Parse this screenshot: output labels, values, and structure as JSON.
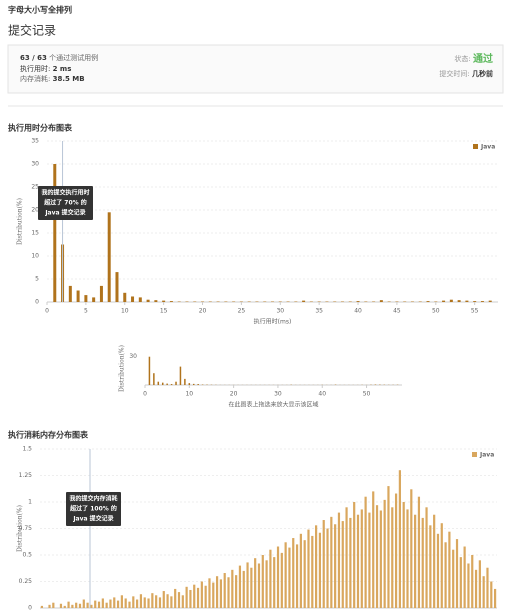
{
  "header": {
    "problem": "字母大小写全排列",
    "title": "提交记录"
  },
  "summary": {
    "passed": "63 / 63",
    "passed_label": "个通过测试用例",
    "runtime_label": "执行用时:",
    "runtime": "2 ms",
    "memory_label": "内存消耗:",
    "memory": "38.5 MB",
    "status_label": "状态:",
    "status": "通过",
    "time_label": "提交时间:",
    "time": "几秒前"
  },
  "chart_data": [
    {
      "type": "bar",
      "title": "执行用时分布图表",
      "x_label": "执行用时(ms)",
      "y_label": "Distribution(%)",
      "marker_x": 2,
      "annotation": [
        "我的提交执行用时",
        "超过了 70% 的",
        "Java 提交记录"
      ],
      "xlim": [
        0,
        58
      ],
      "xticks": [
        0,
        5,
        10,
        15,
        20,
        25,
        30,
        35,
        40,
        45,
        50,
        55
      ],
      "ylim": [
        0,
        35
      ],
      "yticks": [
        0,
        5,
        10,
        15,
        20,
        25,
        30,
        35
      ],
      "grid": true,
      "legend": "top-right",
      "x": [
        1,
        2,
        3,
        4,
        5,
        6,
        7,
        8,
        9,
        10,
        11,
        12,
        13,
        14,
        15,
        16,
        17,
        18,
        19,
        20,
        21,
        22,
        23,
        24,
        25,
        26,
        27,
        28,
        29,
        30,
        31,
        32,
        33,
        34,
        35,
        36,
        37,
        38,
        39,
        40,
        41,
        42,
        43,
        44,
        45,
        46,
        47,
        48,
        49,
        50,
        51,
        52,
        53,
        54,
        55,
        56,
        57
      ],
      "series": [
        {
          "name": "Java",
          "color": "#b0731c",
          "values": [
            30,
            12.5,
            3.5,
            2.5,
            1.5,
            1,
            3.5,
            19.5,
            6.5,
            2,
            1.2,
            1,
            0.5,
            0.4,
            0.3,
            0.2,
            0.1,
            0.1,
            0.1,
            0.1,
            0.1,
            0.1,
            0.1,
            0.1,
            0.1,
            0.1,
            0.1,
            0.1,
            0.1,
            0.1,
            0.1,
            0.1,
            0.3,
            0.1,
            0.1,
            0.1,
            0.1,
            0.1,
            0.1,
            0.2,
            0.1,
            0.1,
            0.4,
            0.1,
            0.1,
            0.1,
            0.1,
            0.1,
            0.2,
            0.1,
            0.3,
            0.5,
            0.4,
            0.3,
            0.2,
            0.2,
            0.3
          ]
        }
      ]
    },
    {
      "type": "bar",
      "x_label": "在此图表上拖选来放大显示该区域",
      "y_label": "Distribution(%)",
      "xlim": [
        0,
        58
      ],
      "xticks": [
        0,
        10,
        20,
        30,
        40,
        50
      ],
      "ylim": [
        0,
        35
      ],
      "yticks": [
        30
      ],
      "grid": false,
      "x": [
        1,
        2,
        3,
        4,
        5,
        6,
        7,
        8,
        9,
        10,
        11,
        12,
        13,
        14,
        15,
        16,
        17,
        18,
        19,
        20,
        21,
        22,
        23,
        24,
        25,
        26,
        27,
        28,
        29,
        30,
        31,
        32,
        33,
        34,
        35,
        36,
        37,
        38,
        39,
        40,
        41,
        42,
        43,
        44,
        45,
        46,
        47,
        48,
        49,
        50,
        51,
        52,
        53,
        54,
        55,
        56,
        57
      ],
      "series": [
        {
          "name": "Java",
          "color": "#b0731c",
          "values": [
            30,
            12.5,
            3.5,
            2.5,
            1.5,
            1,
            3.5,
            19.5,
            6.5,
            2,
            1.2,
            1,
            0.5,
            0.4,
            0.3,
            0.2,
            0.1,
            0.1,
            0.1,
            0.1,
            0.1,
            0.1,
            0.1,
            0.1,
            0.1,
            0.1,
            0.1,
            0.1,
            0.1,
            0.1,
            0.1,
            0.1,
            0.3,
            0.1,
            0.1,
            0.1,
            0.1,
            0.1,
            0.1,
            0.2,
            0.1,
            0.1,
            0.4,
            0.1,
            0.1,
            0.1,
            0.1,
            0.1,
            0.2,
            0.1,
            0.3,
            0.5,
            0.4,
            0.3,
            0.2,
            0.2,
            0.3
          ]
        }
      ]
    },
    {
      "type": "bar",
      "title": "执行消耗内存分布图表",
      "y_label": "Distribution(%)",
      "annotation": [
        "我的提交内存消耗",
        "超过了 100% 的",
        "Java 提交记录"
      ],
      "ylim": [
        0,
        1.5
      ],
      "yticks": [
        0,
        0.25,
        0.5,
        0.75,
        1,
        1.25,
        1.5
      ],
      "grid": true,
      "legend": "top-right",
      "series": [
        {
          "name": "Java",
          "color": "#d9a75e",
          "values": [
            0.02,
            0,
            0.03,
            0.05,
            0,
            0.04,
            0.02,
            0.06,
            0.03,
            0.05,
            0.04,
            0.08,
            0.05,
            0.03,
            0.07,
            0.06,
            0.09,
            0.05,
            0.08,
            0.1,
            0.07,
            0.12,
            0.09,
            0.06,
            0.11,
            0.08,
            0.13,
            0.1,
            0.09,
            0.14,
            0.12,
            0.1,
            0.16,
            0.13,
            0.11,
            0.18,
            0.15,
            0.12,
            0.2,
            0.17,
            0.22,
            0.19,
            0.25,
            0.21,
            0.28,
            0.24,
            0.3,
            0.27,
            0.33,
            0.29,
            0.36,
            0.31,
            0.4,
            0.35,
            0.43,
            0.38,
            0.47,
            0.42,
            0.5,
            0.45,
            0.55,
            0.48,
            0.58,
            0.52,
            0.62,
            0.57,
            0.66,
            0.6,
            0.7,
            0.64,
            0.74,
            0.68,
            0.78,
            0.71,
            0.83,
            0.75,
            0.86,
            0.79,
            0.9,
            0.82,
            0.95,
            0.85,
            1.0,
            0.88,
            0.93,
            1.05,
            0.9,
            1.1,
            0.97,
            0.92,
            1.02,
            1.15,
            0.95,
            1.08,
            1.3,
            1.0,
            0.93,
            1.12,
            0.88,
            1.05,
            0.85,
            0.95,
            0.78,
            0.88,
            0.7,
            0.8,
            0.62,
            0.72,
            0.55,
            0.65,
            0.48,
            0.58,
            0.42,
            0.5,
            0.36,
            0.45,
            0.3,
            0.38,
            0.25,
            0.18
          ]
        }
      ]
    }
  ]
}
